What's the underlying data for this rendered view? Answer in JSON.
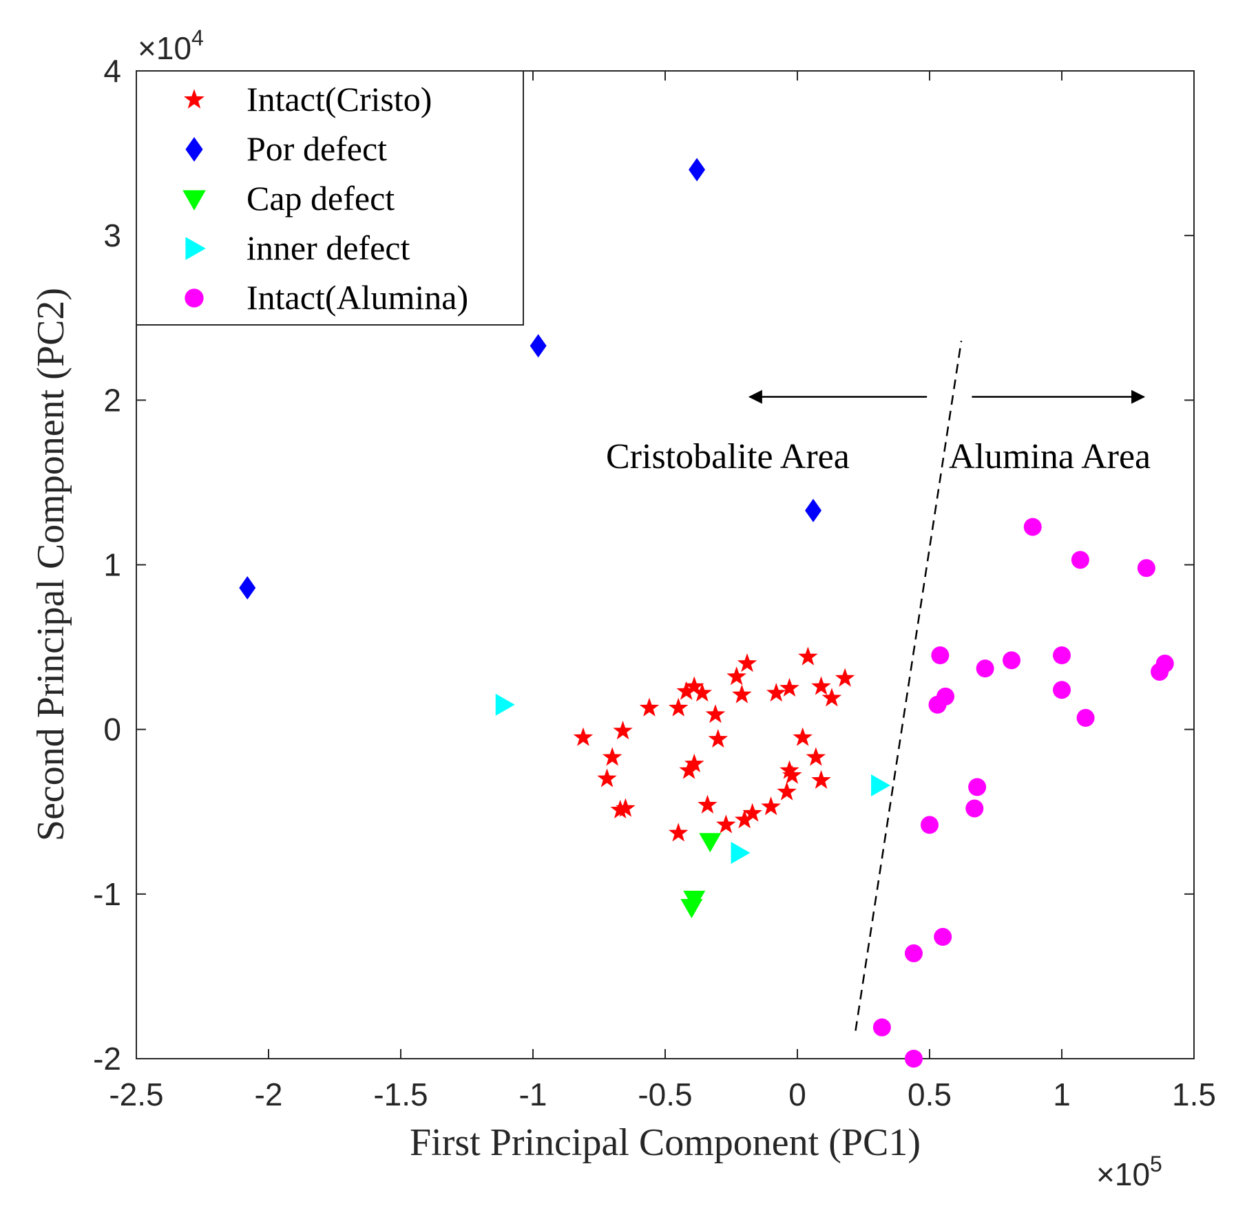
{
  "chart_data": {
    "type": "scatter",
    "xlabel": "First Principal Component (PC1)",
    "ylabel": "Second Principal Component (PC2)",
    "x_multiplier": "×10",
    "x_multiplier_exp": "5",
    "y_multiplier": "×10",
    "y_multiplier_exp": "4",
    "xlim": [
      -2.5,
      1.5
    ],
    "ylim": [
      -2,
      4
    ],
    "xticks": [
      -2.5,
      -2,
      -1.5,
      -1,
      -0.5,
      0,
      0.5,
      1,
      1.5
    ],
    "xtick_labels": [
      "-2.5",
      "-2",
      "-1.5",
      "-1",
      "-0.5",
      "0",
      "0.5",
      "1",
      "1.5"
    ],
    "yticks": [
      -2,
      -1,
      0,
      1,
      2,
      3,
      4
    ],
    "ytick_labels": [
      "-2",
      "-1",
      "0",
      "1",
      "2",
      "3",
      "4"
    ],
    "legend_position": "top-left",
    "series": [
      {
        "name": "Intact(Cristo)",
        "marker": "star",
        "color": "#ff0000",
        "points": [
          [
            -0.81,
            -0.05
          ],
          [
            -0.66,
            -0.01
          ],
          [
            -0.56,
            0.13
          ],
          [
            -0.45,
            0.13
          ],
          [
            -0.42,
            0.23
          ],
          [
            -0.39,
            0.26
          ],
          [
            -0.36,
            0.22
          ],
          [
            -0.31,
            0.09
          ],
          [
            -0.3,
            -0.06
          ],
          [
            -0.23,
            0.32
          ],
          [
            -0.21,
            0.21
          ],
          [
            -0.19,
            0.4
          ],
          [
            -0.08,
            0.22
          ],
          [
            -0.03,
            0.25
          ],
          [
            0.04,
            0.44
          ],
          [
            0.09,
            0.26
          ],
          [
            0.13,
            0.19
          ],
          [
            0.18,
            0.31
          ],
          [
            0.02,
            -0.05
          ],
          [
            0.07,
            -0.17
          ],
          [
            0.09,
            -0.31
          ],
          [
            -0.03,
            -0.25
          ],
          [
            -0.02,
            -0.28
          ],
          [
            -0.04,
            -0.38
          ],
          [
            -0.1,
            -0.47
          ],
          [
            -0.17,
            -0.51
          ],
          [
            -0.2,
            -0.55
          ],
          [
            -0.27,
            -0.58
          ],
          [
            -0.34,
            -0.46
          ],
          [
            -0.45,
            -0.63
          ],
          [
            -0.39,
            -0.21
          ],
          [
            -0.41,
            -0.25
          ],
          [
            -0.7,
            -0.17
          ],
          [
            -0.72,
            -0.3
          ],
          [
            -0.67,
            -0.49
          ],
          [
            -0.65,
            -0.48
          ]
        ]
      },
      {
        "name": "Por defect",
        "marker": "diamond",
        "color": "#0000ff",
        "points": [
          [
            -2.08,
            0.86
          ],
          [
            -0.98,
            2.33
          ],
          [
            -0.38,
            3.4
          ],
          [
            0.06,
            1.33
          ]
        ]
      },
      {
        "name": "Cap defect",
        "marker": "triangle-down",
        "color": "#00ff00",
        "points": [
          [
            -0.33,
            -0.68
          ],
          [
            -0.39,
            -1.03
          ],
          [
            -0.4,
            -1.08
          ]
        ]
      },
      {
        "name": "inner defect",
        "marker": "triangle-right",
        "color": "#00ffff",
        "points": [
          [
            -1.11,
            0.15
          ],
          [
            0.31,
            -0.34
          ],
          [
            -0.22,
            -0.75
          ]
        ]
      },
      {
        "name": "Intact(Alumina)",
        "marker": "circle",
        "color": "#ff00ff",
        "points": [
          [
            0.89,
            1.23
          ],
          [
            1.07,
            1.03
          ],
          [
            1.32,
            0.98
          ],
          [
            0.54,
            0.45
          ],
          [
            0.71,
            0.37
          ],
          [
            0.81,
            0.42
          ],
          [
            1.0,
            0.45
          ],
          [
            1.39,
            0.4
          ],
          [
            1.37,
            0.35
          ],
          [
            0.56,
            0.2
          ],
          [
            0.53,
            0.15
          ],
          [
            1.0,
            0.24
          ],
          [
            1.09,
            0.07
          ],
          [
            0.68,
            -0.35
          ],
          [
            0.67,
            -0.48
          ],
          [
            0.5,
            -0.58
          ],
          [
            0.55,
            -1.26
          ],
          [
            0.44,
            -1.36
          ],
          [
            0.32,
            -1.81
          ],
          [
            0.44,
            -2.0
          ]
        ]
      }
    ],
    "annotations": {
      "cristobalite_label": "Cristobalite Area",
      "alumina_label": "Alumina Area",
      "divider": {
        "x1": 0.22,
        "y1": -1.83,
        "x2": 0.62,
        "y2": 2.36
      },
      "left_arrow": {
        "from_x": 0.49,
        "to_x": -0.18,
        "y": 2.02
      },
      "right_arrow": {
        "from_x": 0.66,
        "to_x": 1.31,
        "y": 2.02
      }
    }
  }
}
